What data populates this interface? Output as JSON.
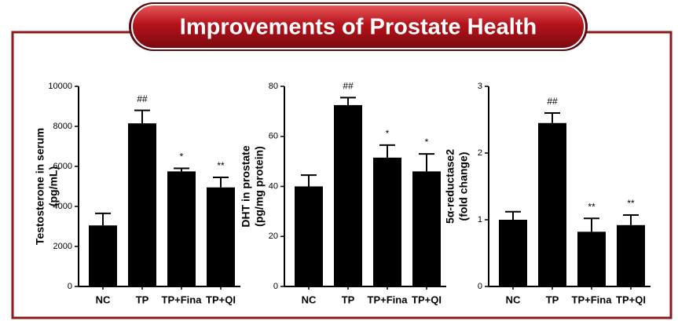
{
  "title": "Improvements of Prostate Health",
  "chart_data": [
    {
      "type": "bar",
      "ylabel": [
        "Testosterone in serum",
        "(pg/mL)"
      ],
      "categories": [
        "NC",
        "TP",
        "TP+Fina",
        "TP+QI"
      ],
      "values": [
        3050,
        8150,
        5750,
        4950
      ],
      "errors": [
        600,
        650,
        150,
        500
      ],
      "annotations": [
        null,
        "##",
        "*",
        "**"
      ],
      "color": "#000000",
      "ylim": [
        0,
        10000
      ],
      "yticks": [
        0,
        2000,
        4000,
        6000,
        8000,
        10000
      ]
    },
    {
      "type": "bar",
      "ylabel": [
        "DHT in prostate",
        "(pg/mg protein)"
      ],
      "categories": [
        "NC",
        "TP",
        "TP+Fina",
        "TP+QI"
      ],
      "values": [
        40,
        72.5,
        51.5,
        46
      ],
      "errors": [
        4.5,
        3,
        5,
        7
      ],
      "annotations": [
        null,
        "##",
        "*",
        "*"
      ],
      "color": "#000000",
      "ylim": [
        0,
        80
      ],
      "yticks": [
        0,
        20,
        40,
        60,
        80
      ]
    },
    {
      "type": "bar",
      "ylabel": [
        "5α-reductase2",
        "(fold change)"
      ],
      "categories": [
        "NC",
        "TP",
        "TP+Fina",
        "TP+QI"
      ],
      "values": [
        1.0,
        2.45,
        0.82,
        0.92
      ],
      "errors": [
        0.12,
        0.15,
        0.2,
        0.15
      ],
      "annotations": [
        null,
        "##",
        "**",
        "**"
      ],
      "color": "#000000",
      "ylim": [
        0,
        3
      ],
      "yticks": [
        0,
        1,
        2,
        3
      ]
    }
  ]
}
